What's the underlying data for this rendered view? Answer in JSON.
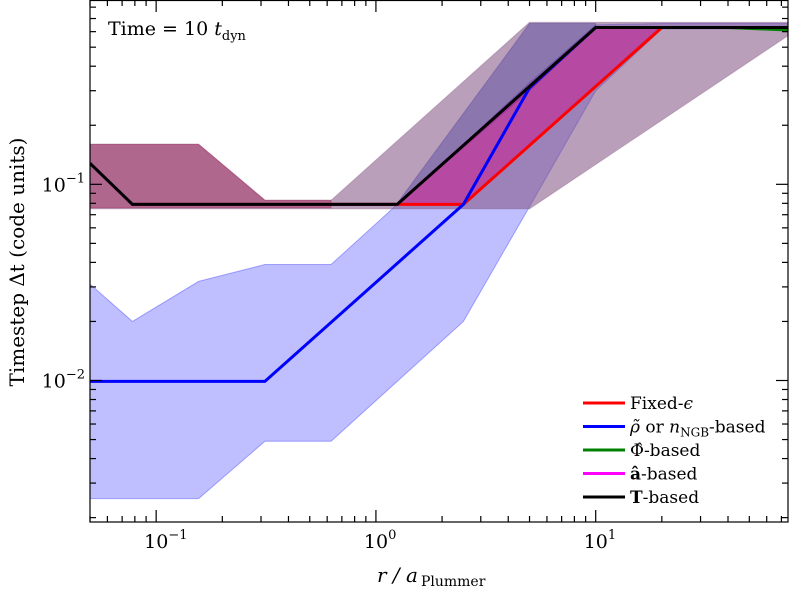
{
  "chart_data": {
    "type": "line",
    "annotation": {
      "prefix": "Time = 10 ",
      "var": "t",
      "sub": "dyn"
    },
    "xlabel": {
      "main": "r / a",
      "sub": "Plummer"
    },
    "ylabel": "Timestep Δt   (code units)",
    "xscale": "log",
    "yscale": "log",
    "xlim": [
      0.05,
      75
    ],
    "ylim": [
      0.0019,
      0.87
    ],
    "xticks": [
      {
        "value": 0.1,
        "base": "10",
        "exp": "−1"
      },
      {
        "value": 1,
        "base": "10",
        "exp": "0"
      },
      {
        "value": 10,
        "base": "10",
        "exp": "1"
      }
    ],
    "yticks": [
      {
        "value": 0.1,
        "base": "10",
        "exp": "−1"
      },
      {
        "value": 0.01,
        "base": "10",
        "exp": "−2"
      }
    ],
    "grid": false,
    "legend_position": "bottom-right",
    "bands": [
      {
        "color": "#0000ff",
        "opacity": 0.25,
        "x": [
          0.05,
          0.078,
          0.156,
          0.3125,
          0.625,
          1.25,
          2.5,
          5,
          10,
          20,
          80
        ],
        "upper": [
          0.031,
          0.02,
          0.032,
          0.039,
          0.039,
          0.079,
          0.16,
          0.33,
          0.65,
          0.66,
          0.66
        ],
        "lower": [
          0.0025,
          0.0025,
          0.0025,
          0.0049,
          0.0049,
          0.0099,
          0.02,
          0.077,
          0.3,
          0.62,
          0.62
        ]
      },
      {
        "color": "#805080",
        "opacity": 0.55,
        "x": [
          0.05,
          0.156,
          0.3125,
          0.625,
          5,
          80
        ],
        "upper": [
          0.16,
          0.16,
          0.083,
          0.083,
          0.67,
          0.67
        ],
        "lower": [
          0.075,
          0.075,
          0.075,
          0.075,
          0.075,
          0.6
        ]
      },
      {
        "color": "#a0003c",
        "opacity": 0.35,
        "x": [
          0.05,
          0.156,
          0.3125,
          0.625
        ],
        "upper": [
          0.16,
          0.16,
          0.083,
          0.083
        ],
        "lower": [
          0.076,
          0.076,
          0.076,
          0.076
        ]
      },
      {
        "color": "#3a2a9a",
        "opacity": 0.35,
        "x": [
          1.25,
          5,
          10
        ],
        "upper": [
          0.08,
          0.66,
          0.66
        ],
        "lower": [
          0.079,
          0.3,
          0.63
        ]
      },
      {
        "color": "#d0108a",
        "opacity": 0.5,
        "x": [
          1.25,
          2.5,
          10,
          20
        ],
        "upper": [
          0.079,
          0.158,
          0.63,
          0.63
        ],
        "lower": [
          0.079,
          0.079,
          0.315,
          0.63
        ]
      }
    ],
    "series": [
      {
        "name": "Fixed-ε",
        "color": "#ff0000",
        "x": [
          0.078,
          2.5,
          20,
          80
        ],
        "y": [
          0.079,
          0.079,
          0.63,
          0.63
        ]
      },
      {
        "name": "ρ̃ or n_NGB-based",
        "color": "#0000ff",
        "x": [
          0.05,
          0.3125,
          2.5,
          5,
          10,
          80
        ],
        "y": [
          0.0099,
          0.0099,
          0.079,
          0.31,
          0.63,
          0.63
        ]
      },
      {
        "name": "Φ̂-based",
        "color": "#008000",
        "x": [
          0.05,
          0.078,
          1.25,
          10,
          40,
          80
        ],
        "y": [
          0.128,
          0.079,
          0.079,
          0.63,
          0.63,
          0.61
        ]
      },
      {
        "name": "â-based",
        "color": "#ff00ff",
        "x": [
          0.05,
          0.078,
          1.25,
          10,
          80
        ],
        "y": [
          0.128,
          0.079,
          0.079,
          0.63,
          0.63
        ]
      },
      {
        "name": "T-based",
        "color": "#000000",
        "x": [
          0.05,
          0.078,
          1.25,
          10,
          80
        ],
        "y": [
          0.128,
          0.079,
          0.079,
          0.63,
          0.63
        ]
      }
    ],
    "legend": [
      {
        "text": "Fixed-",
        "italic": "ϵ",
        "sub": "",
        "after": ""
      },
      {
        "text": "",
        "italic": "ρ̃",
        "mid": " or ",
        "italic2": "n",
        "sub": "NGB",
        "after": "-based"
      },
      {
        "text": "Φ̂",
        "after": "-based",
        "bold": false
      },
      {
        "text": "â",
        "after": "-based",
        "bold": true
      },
      {
        "text": "T",
        "after": "-based",
        "bold": true
      }
    ]
  }
}
